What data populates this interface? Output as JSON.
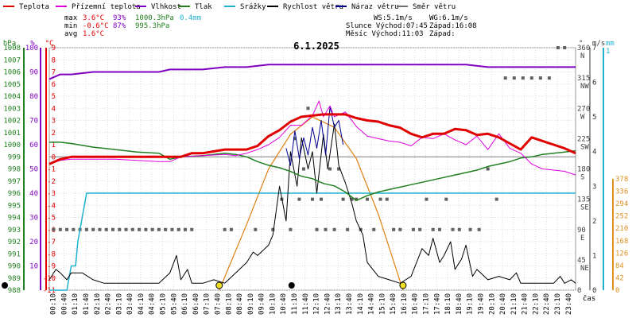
{
  "chart_data": {
    "type": "line",
    "title": "6.1.2025",
    "legend": [
      {
        "label": "Teplota",
        "color": "#e00000"
      },
      {
        "label": "Přízemní teplota",
        "color": "#e000e0"
      },
      {
        "label": "Vlhkost",
        "color": "#8000c0"
      },
      {
        "label": "Tlak",
        "color": "#208020"
      },
      {
        "label": "Srážky",
        "color": "#20b0d0"
      },
      {
        "label": "Rychlost větru",
        "color": "#000000"
      },
      {
        "label": "Náraz větru",
        "color": "#000090"
      },
      {
        "label": "Směr větru",
        "color": "#707070"
      }
    ],
    "stats": {
      "max": {
        "label": "max",
        "temp": "3.6°C",
        "hum": "93%",
        "press": "1000.3hPa",
        "rain": "0.4mm"
      },
      "min": {
        "label": "min",
        "temp": "-0.6°C",
        "hum": "87%",
        "press": "995.3hPa"
      },
      "avg": {
        "label": "avg",
        "temp": "1.6°C"
      }
    },
    "info": {
      "ws": "WS:5.1m/s",
      "wg": "WG:6.1m/s",
      "sun": "Slunce Východ:07:45",
      "sunset": "Západ:16:08",
      "moon": "Měsíc  Východ:11:03",
      "moonset": "Západ:"
    },
    "axes": {
      "press_unit": "hPa",
      "hum_unit": "%",
      "temp_unit": "°C",
      "dir_unit": "°",
      "ws_unit": "m/s",
      "rain_unit": "mm",
      "xlabel": "čas",
      "press_ticks": [
        "1008",
        "1007",
        "1006",
        "1005",
        "1004",
        "1003",
        "1002",
        "1001",
        "1000",
        "999",
        "998",
        "997",
        "996",
        "995",
        "994",
        "993",
        "992",
        "991",
        "990",
        "989",
        "988"
      ],
      "hum_ticks": [
        "100",
        "90",
        "80",
        "70",
        "60",
        "50",
        "40",
        "30",
        "20",
        "10"
      ],
      "temp_ticks": [
        "9",
        "8",
        "7",
        "6",
        "5",
        "4",
        "3",
        "2",
        "1",
        "0",
        "-1",
        "-2",
        "-3",
        "-4",
        "-5",
        "-6",
        "-7",
        "-8",
        "-9",
        "-10",
        "-11"
      ],
      "dir_ticks": [
        "360",
        "315",
        "270",
        "225",
        "180",
        "135",
        "90",
        "45",
        "0"
      ],
      "dir_names": [
        "N",
        "NW",
        "W",
        "SW",
        "S",
        "SE",
        "E",
        "NE"
      ],
      "ws_ticks": [
        "7",
        "6",
        "5",
        "4",
        "3",
        "2",
        "1",
        "0"
      ],
      "rain_ticks": [
        "378",
        "336",
        "294",
        "252",
        "210",
        "168",
        "126",
        "84",
        "42",
        "0"
      ],
      "rain_top": "1",
      "x_ticks": [
        "00:10",
        "00:40",
        "01:10",
        "01:40",
        "02:10",
        "02:40",
        "03:10",
        "03:40",
        "04:10",
        "04:40",
        "05:10",
        "05:40",
        "06:10",
        "06:40",
        "07:10",
        "07:40",
        "08:10",
        "08:40",
        "09:10",
        "09:40",
        "10:10",
        "10:40",
        "11:10",
        "11:40",
        "12:10",
        "12:40",
        "13:10",
        "13:40",
        "14:10",
        "14:40",
        "15:10",
        "15:40",
        "16:10",
        "16:40",
        "17:10",
        "17:40",
        "18:10",
        "18:40",
        "19:10",
        "19:40",
        "20:10",
        "20:40",
        "21:10",
        "21:40",
        "22:10",
        "22:40",
        "23:10",
        "23:40"
      ]
    },
    "ranges": {
      "x": [
        0,
        24
      ],
      "temp": [
        -11,
        9
      ],
      "hum": [
        0,
        100
      ],
      "press": [
        988,
        1008
      ],
      "dir": [
        0,
        360
      ],
      "ws": [
        0,
        7
      ],
      "rain": [
        0,
        1
      ]
    },
    "series": {
      "temp": {
        "x": [
          0.0,
          0.5,
          1.0,
          1.5,
          2.0,
          3.0,
          4.0,
          5.0,
          6.0,
          6.5,
          7.0,
          8.0,
          9.0,
          9.5,
          10.0,
          10.5,
          11.0,
          11.5,
          12.0,
          12.5,
          13.0,
          13.5,
          14.0,
          14.5,
          15.0,
          15.5,
          16.0,
          16.5,
          17.0,
          17.5,
          18.0,
          18.5,
          19.0,
          19.5,
          20.0,
          20.5,
          21.0,
          21.5,
          22.0,
          22.5,
          23.0,
          23.5,
          24.0
        ],
        "y": [
          -0.6,
          -0.2,
          0.0,
          0.0,
          0.0,
          0.0,
          0.0,
          0.0,
          0.0,
          0.3,
          0.3,
          0.6,
          0.6,
          0.9,
          1.7,
          2.2,
          2.9,
          3.3,
          3.4,
          3.5,
          3.5,
          3.5,
          3.2,
          3.0,
          2.9,
          2.6,
          2.4,
          1.9,
          1.6,
          1.9,
          1.9,
          2.3,
          2.2,
          1.8,
          1.9,
          1.6,
          1.1,
          0.6,
          1.6,
          1.3,
          1.0,
          0.7,
          0.3
        ]
      },
      "ground": {
        "x": [
          0.0,
          0.5,
          1.0,
          1.5,
          2.0,
          3.0,
          4.0,
          5.0,
          5.5,
          6.0,
          7.0,
          8.0,
          8.5,
          9.0,
          9.5,
          10.0,
          10.5,
          11.0,
          11.5,
          12.0,
          12.3,
          12.5,
          12.8,
          13.0,
          13.5,
          14.0,
          14.5,
          15.0,
          15.5,
          16.0,
          16.5,
          17.0,
          17.5,
          18.0,
          18.5,
          19.0,
          19.5,
          20.0,
          20.5,
          21.0,
          21.5,
          22.0,
          22.5,
          23.0,
          23.5,
          24.0
        ],
        "y": [
          -0.6,
          -0.3,
          -0.2,
          -0.2,
          -0.2,
          -0.2,
          -0.3,
          -0.4,
          -0.4,
          0.0,
          0.1,
          0.2,
          0.1,
          0.3,
          0.6,
          1.0,
          1.6,
          2.6,
          2.6,
          3.4,
          4.6,
          3.3,
          4.2,
          3.3,
          3.7,
          2.5,
          1.7,
          1.5,
          1.3,
          1.2,
          0.9,
          1.6,
          1.5,
          1.9,
          1.4,
          1.0,
          1.7,
          0.6,
          1.9,
          0.7,
          0.3,
          -0.6,
          -1.0,
          -1.1,
          -1.2,
          -1.5
        ]
      },
      "hum": {
        "x": [
          0.0,
          0.5,
          1.0,
          2.0,
          5.0,
          5.5,
          7.0,
          8.0,
          9.0,
          10.0,
          11.0,
          12.0,
          13.0,
          14.0,
          15.0,
          16.0,
          17.0,
          18.0,
          19.0,
          20.0,
          21.0,
          22.0,
          23.0,
          24.0
        ],
        "y": [
          87,
          89,
          89,
          90,
          90,
          91,
          91,
          92,
          92,
          93,
          93,
          93,
          93,
          93,
          93,
          93,
          93,
          93,
          93,
          92,
          92,
          92,
          92,
          92
        ]
      },
      "press": {
        "x": [
          0.0,
          0.5,
          1.0,
          2.0,
          3.0,
          4.0,
          5.0,
          5.5,
          6.0,
          7.0,
          8.0,
          8.5,
          9.0,
          9.5,
          10.0,
          10.5,
          11.0,
          11.5,
          12.0,
          12.5,
          13.0,
          13.5,
          14.0,
          14.5,
          15.0,
          15.5,
          16.0,
          16.5,
          17.0,
          17.5,
          18.0,
          18.5,
          19.0,
          19.5,
          20.0,
          20.5,
          21.0,
          21.5,
          22.0,
          22.5,
          23.0,
          23.5,
          24.0
        ],
        "y": [
          1000.2,
          1000.2,
          1000.1,
          999.8,
          999.6,
          999.4,
          999.3,
          998.8,
          999.0,
          999.1,
          999.3,
          999.2,
          999.0,
          998.6,
          998.3,
          998.1,
          997.8,
          997.4,
          997.2,
          996.8,
          996.6,
          996.1,
          995.4,
          995.8,
          996.1,
          996.3,
          996.5,
          996.7,
          996.9,
          997.1,
          997.3,
          997.5,
          997.7,
          997.9,
          998.2,
          998.4,
          998.6,
          998.9,
          999.0,
          999.2,
          999.3,
          999.4,
          999.5
        ]
      },
      "rain": {
        "x": [
          0.0,
          0.5,
          0.8,
          1.0,
          1.2,
          1.3,
          1.5,
          1.7,
          2.0,
          24.0
        ],
        "y": [
          0.0,
          0.0,
          0.0,
          0.1,
          0.1,
          0.2,
          0.3,
          0.4,
          0.4,
          0.4
        ]
      },
      "ws": {
        "x": [
          0.0,
          0.3,
          0.5,
          0.8,
          1.0,
          1.5,
          2.0,
          2.5,
          3.0,
          4.0,
          5.0,
          5.5,
          5.8,
          6.0,
          6.3,
          6.5,
          7.0,
          7.5,
          8.0,
          8.5,
          9.0,
          9.3,
          9.5,
          10.0,
          10.2,
          10.5,
          10.8,
          11.0,
          11.3,
          11.5,
          11.8,
          12.0,
          12.2,
          12.5,
          12.7,
          13.0,
          13.2,
          13.5,
          13.8,
          14.0,
          14.3,
          14.5,
          15.0,
          15.5,
          16.0,
          16.5,
          17.0,
          17.3,
          17.5,
          17.8,
          18.0,
          18.3,
          18.5,
          18.8,
          19.0,
          19.3,
          19.5,
          20.0,
          20.5,
          21.0,
          21.3,
          21.5,
          22.0,
          22.5,
          23.0,
          23.3,
          23.5,
          23.8,
          24.0
        ],
        "y": [
          0.3,
          0.6,
          0.5,
          0.3,
          0.5,
          0.5,
          0.3,
          0.2,
          0.2,
          0.2,
          0.2,
          0.5,
          1.0,
          0.3,
          0.6,
          0.2,
          0.2,
          0.3,
          0.2,
          0.5,
          0.8,
          1.1,
          1.0,
          1.3,
          1.6,
          3.0,
          2.0,
          4.0,
          3.0,
          4.4,
          3.5,
          4.0,
          2.8,
          4.5,
          3.5,
          4.8,
          3.6,
          3.1,
          2.5,
          2.0,
          1.6,
          0.8,
          0.4,
          0.3,
          0.2,
          0.4,
          1.2,
          1.0,
          1.5,
          0.8,
          1.0,
          1.4,
          0.6,
          0.9,
          1.3,
          0.4,
          0.6,
          0.3,
          0.4,
          0.3,
          0.5,
          0.2,
          0.2,
          0.2,
          0.2,
          0.4,
          0.2,
          0.3,
          0.2
        ]
      },
      "gust": {
        "x": [
          10.8,
          11.0,
          11.2,
          11.4,
          11.6,
          11.8,
          12.0,
          12.2,
          12.4,
          12.6,
          12.8,
          13.0,
          13.2,
          13.4
        ],
        "y": [
          4.1,
          3.6,
          4.6,
          3.8,
          4.4,
          3.9,
          4.7,
          4.1,
          4.9,
          3.9,
          5.3,
          4.7,
          4.9,
          4.2
        ]
      },
      "dir": {
        "x": [
          0.2,
          0.5,
          0.8,
          1.1,
          1.4,
          1.7,
          2.0,
          2.3,
          2.6,
          2.9,
          3.2,
          3.5,
          3.8,
          4.1,
          4.4,
          4.7,
          5.0,
          5.3,
          5.6,
          5.9,
          6.2,
          6.5,
          8.0,
          8.3,
          9.4,
          10.2,
          10.6,
          11.0,
          11.2,
          11.4,
          11.6,
          11.8,
          12.0,
          12.2,
          12.4,
          12.6,
          12.8,
          13.0,
          13.2,
          13.4,
          13.6,
          13.8,
          14.0,
          14.2,
          14.5,
          14.8,
          15.1,
          15.4,
          15.7,
          16.0,
          16.6,
          16.9,
          17.2,
          17.5,
          17.8,
          18.1,
          18.4,
          18.7,
          19.2,
          19.6,
          20.0,
          20.4,
          20.8,
          21.2,
          21.6,
          22.0,
          22.4,
          22.8,
          23.2,
          23.5
        ],
        "y": [
          90,
          90,
          90,
          90,
          90,
          90,
          90,
          90,
          90,
          90,
          90,
          90,
          90,
          90,
          90,
          90,
          90,
          90,
          90,
          90,
          90,
          90,
          90,
          90,
          90,
          90,
          135,
          90,
          225,
          135,
          180,
          270,
          135,
          90,
          135,
          90,
          180,
          90,
          180,
          135,
          90,
          135,
          135,
          90,
          135,
          90,
          135,
          135,
          90,
          90,
          90,
          90,
          135,
          90,
          90,
          135,
          90,
          90,
          90,
          90,
          180,
          135,
          315,
          315,
          315,
          315,
          315,
          315,
          360,
          360
        ]
      },
      "sun_elev": {
        "x": [
          7.75,
          9.0,
          10.0,
          11.0,
          12.0,
          13.0,
          14.0,
          15.0,
          16.13
        ],
        "y": [
          0.0,
          1.9,
          3.5,
          4.5,
          5.0,
          4.7,
          3.8,
          2.2,
          0.0
        ]
      },
      "markers": {
        "sunrise": 7.75,
        "sunset": 16.13,
        "moonrise": 11.05
      }
    }
  }
}
